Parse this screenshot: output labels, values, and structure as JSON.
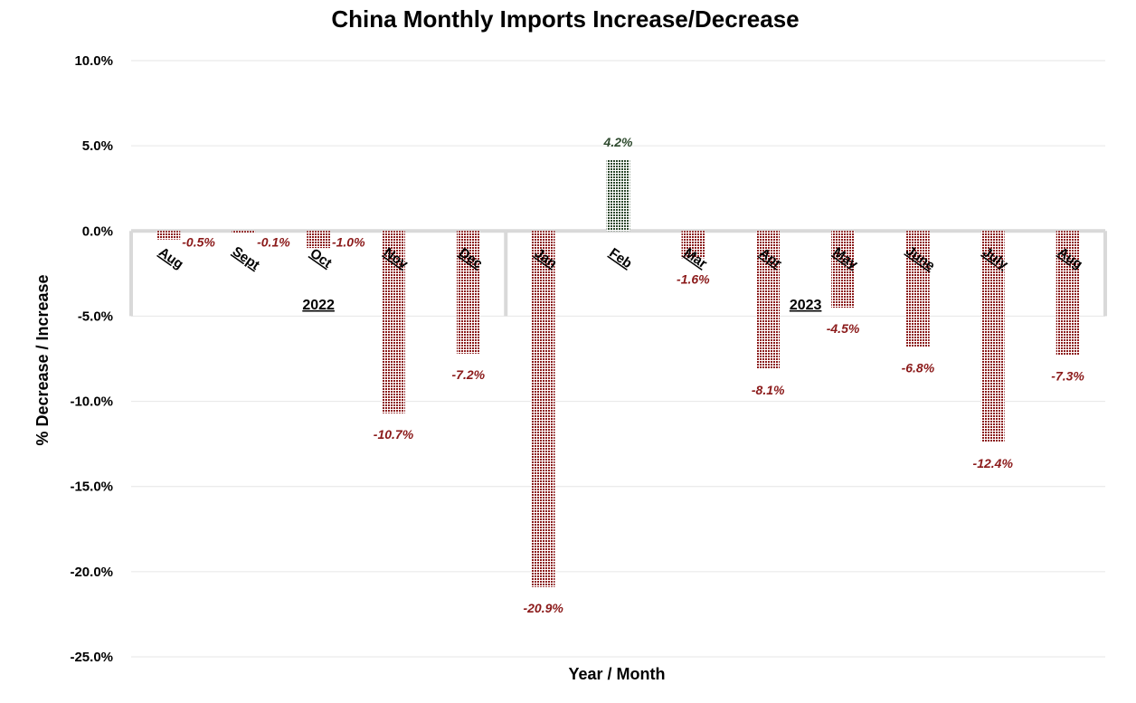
{
  "chart_data": {
    "type": "bar",
    "title": "China Monthly Imports Increase/Decrease",
    "xlabel": "Year / Month",
    "ylabel": "% Decrease / Increase",
    "ylim": [
      -25,
      10
    ],
    "yticks": [
      10,
      5,
      0,
      -5,
      -10,
      -15,
      -20,
      -25
    ],
    "ytick_labels": [
      "10.0%",
      "5.0%",
      "0.0%",
      "-5.0%",
      "-10.0%",
      "-15.0%",
      "-20.0%",
      "-25.0%"
    ],
    "grid": true,
    "categories": [
      "Aug",
      "Sept",
      "Oct",
      "Nov",
      "Dec",
      "Jan",
      "Feb",
      "Mar",
      "Apr",
      "May",
      "June",
      "July",
      "Aug"
    ],
    "groups": [
      {
        "label": "2022",
        "months": [
          "Aug",
          "Sept",
          "Oct",
          "Nov",
          "Dec"
        ]
      },
      {
        "label": "2023",
        "months": [
          "Jan",
          "Feb",
          "Mar",
          "Apr",
          "May",
          "June",
          "July",
          "Aug"
        ]
      }
    ],
    "values": [
      -0.5,
      -0.1,
      -1.0,
      -10.7,
      -7.2,
      -20.9,
      4.2,
      -1.6,
      -8.1,
      -4.5,
      -6.8,
      -12.4,
      -7.3
    ],
    "data_labels": [
      "-0.5%",
      "-0.1%",
      "-1.0%",
      "-10.7%",
      "-7.2%",
      "-20.9%",
      "4.2%",
      "-1.6%",
      "-8.1%",
      "-4.5%",
      "-6.8%",
      "-12.4%",
      "-7.3%"
    ],
    "colors": {
      "negative": "#8b1a1a",
      "positive": "#2e4a2e",
      "category_band": "#d9d9d9"
    }
  }
}
